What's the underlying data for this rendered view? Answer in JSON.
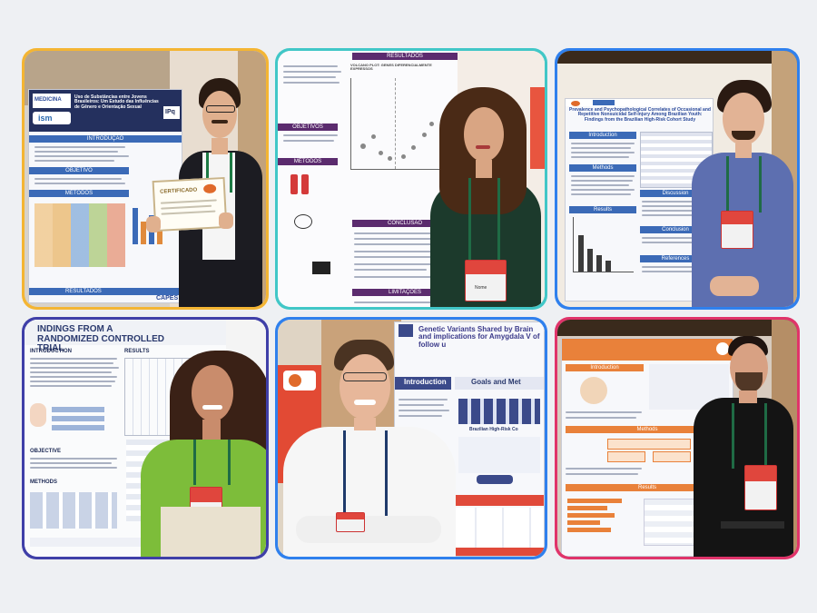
{
  "tiles": [
    {
      "id": "poster-1",
      "frame_color": "#f4b533",
      "poster_title": "Uso de Substâncias entre Jovens Brasileiros: Um Estudo das Influências de Gênero e Orientação Sexual",
      "logos": [
        "MEDICINA",
        "IPq",
        "ism"
      ],
      "sections": [
        "INTRODUÇÃO",
        "OBJETIVO",
        "MÉTODOS",
        "RESULTADOS"
      ],
      "certificate_label": "CERTIFICADO",
      "footer_logo": "CAPES"
    },
    {
      "id": "poster-2",
      "frame_color": "#41c7c7",
      "sections": [
        "RESULTADOS",
        "OBJETIVOS",
        "MÉTODOS",
        "CONCLUSÃO",
        "LIMITAÇÕES"
      ],
      "result_note": "VOLCANO PLOT: GENES DIFERENCIALMENTE EXPRESSOS",
      "badge_name": "Nome"
    },
    {
      "id": "poster-3",
      "frame_color": "#2f80ed",
      "poster_title": "Prevalence and Psychopathological Correlates of Occasional and Repetitive Nonsuicidal Self-Injury Among Brazilian Youth: Findings from the Brazilian High-Risk Cohort Study",
      "sections": [
        "Introduction",
        "Methods",
        "Results",
        "Discussion",
        "Conclusion",
        "References"
      ]
    },
    {
      "id": "poster-4",
      "frame_color": "#3f3fa8",
      "poster_title": "INDINGS FROM A RANDOMIZED CONTROLLED TRIAL",
      "sections": [
        "INTRODUCTION",
        "OBJECTIVE",
        "METHODS",
        "RESULTS"
      ]
    },
    {
      "id": "poster-5",
      "frame_color": "#2f80ed",
      "poster_title": "Genetic Variants Shared by Brain and implications for Amygdala V of follow u",
      "sections": [
        "Introduction",
        "Goals and Met"
      ],
      "cohort_label": "Brazilian High-Risk Co"
    },
    {
      "id": "poster-6",
      "frame_color": "#e0346a",
      "sections": [
        "Introduction",
        "Methods",
        "Results"
      ]
    }
  ]
}
